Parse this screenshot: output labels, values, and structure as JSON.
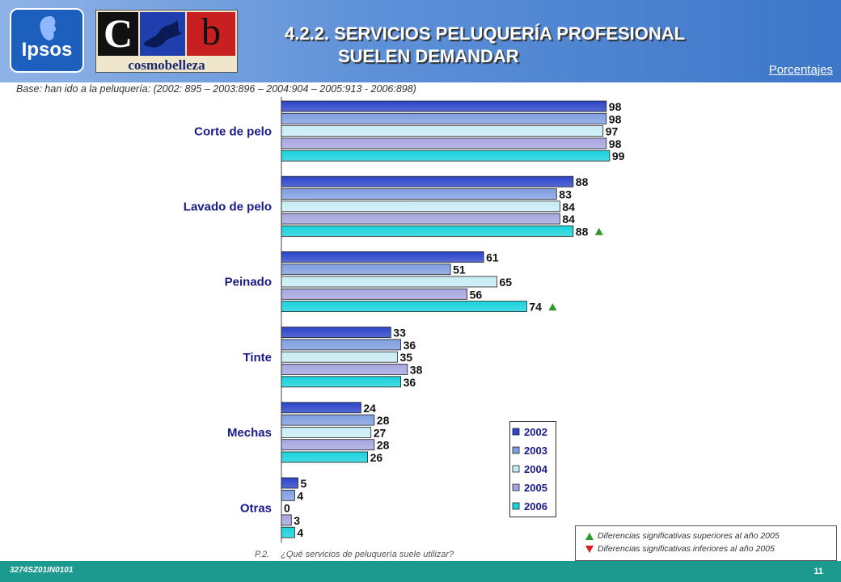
{
  "header": {
    "title_line1": "4.2.2. SERVICIOS PELUQUERÍA PROFESIONAL",
    "title_line2": "SUELEN DEMANDAR",
    "units_label": "Porcentajes",
    "logo_ipsos": "Ipsos",
    "logo_cosmo_word": "cosmobelleza",
    "logo_c": "C",
    "logo_b": "b"
  },
  "base_note": "Base: han ido a la peluquería: (2002: 895 – 2003:896 – 2004:904 – 2005:913  - 2006:898)",
  "chart_data": {
    "type": "bar",
    "orientation": "horizontal",
    "categories": [
      "Corte de pelo",
      "Lavado de pelo",
      "Peinado",
      "Tinte",
      "Mechas",
      "Otras"
    ],
    "series": [
      {
        "name": "2002",
        "color": "#2b44c8",
        "values": [
          98,
          88,
          61,
          33,
          24,
          5
        ]
      },
      {
        "name": "2003",
        "color": "#7f9ee0",
        "values": [
          98,
          83,
          51,
          36,
          28,
          4
        ]
      },
      {
        "name": "2004",
        "color": "#c8ecf4",
        "values": [
          97,
          84,
          65,
          35,
          27,
          0
        ]
      },
      {
        "name": "2005",
        "color": "#a6a6e0",
        "values": [
          98,
          84,
          56,
          38,
          28,
          3
        ]
      },
      {
        "name": "2006",
        "color": "#19d2dc",
        "values": [
          99,
          88,
          74,
          36,
          26,
          4
        ]
      }
    ],
    "significance_markers": [
      {
        "category": "Lavado de pelo",
        "series": "2006",
        "direction": "up"
      },
      {
        "category": "Peinado",
        "series": "2006",
        "direction": "up"
      }
    ],
    "xlim": [
      0,
      100
    ],
    "legend_position": "bottom-right",
    "grid": false
  },
  "significance_legend": {
    "up_text": "Diferencias significativas superiores al año 2005",
    "down_text": "Diferencias significativas inferiores al año 2005",
    "up_color": "#2a9a2a",
    "down_color": "#d82020"
  },
  "question": {
    "code": "P.2.",
    "text": "¿Qué servicios de peluquería suele utilizar?"
  },
  "footer": {
    "code": "3274SZ01IN0101",
    "page": "11",
    "color": "#1d9a8f"
  }
}
